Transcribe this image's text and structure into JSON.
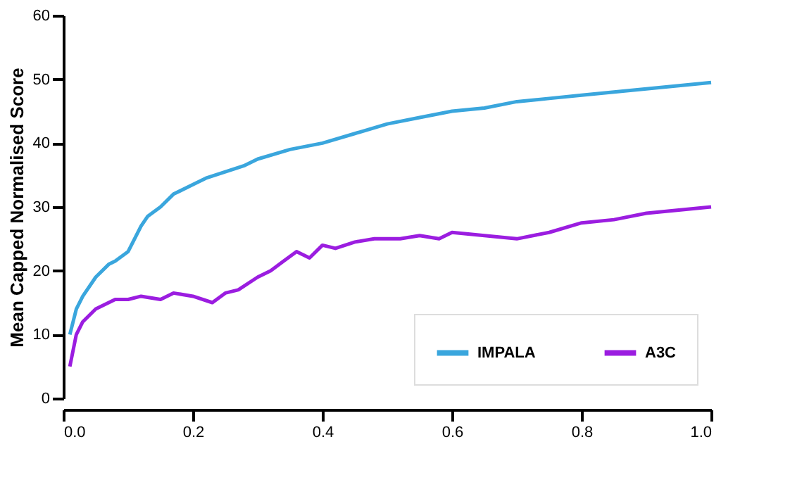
{
  "chart_data": {
    "type": "line",
    "ylabel": "Mean Capped Normalised Score",
    "xlim": [
      0,
      1.0
    ],
    "xticks": [
      {
        "value": 0,
        "label": "0.0"
      },
      0.2,
      0.4,
      0.6,
      0.8,
      {
        "value": 1,
        "label": "1.0"
      }
    ],
    "ylim": [
      0,
      60
    ],
    "yticks": [
      0,
      10,
      20,
      30,
      40,
      50,
      60
    ],
    "grid": false,
    "legend": "bottom right",
    "marker": "none",
    "line_style": "solid",
    "series": [
      {
        "name": "IMPALA",
        "color": "#3aa6dd",
        "x": [
          0.01,
          0.02,
          0.03,
          0.05,
          0.07,
          0.08,
          0.1,
          0.12,
          0.13,
          0.15,
          0.17,
          0.2,
          0.22,
          0.25,
          0.28,
          0.3,
          0.35,
          0.4,
          0.45,
          0.5,
          0.55,
          0.6,
          0.65,
          0.7,
          0.75,
          0.8,
          0.85,
          0.9,
          0.95,
          1.0
        ],
        "values": [
          10,
          14,
          16,
          19,
          21,
          21.5,
          23,
          27,
          28.5,
          30,
          32,
          33.5,
          34.5,
          35.5,
          36.5,
          37.5,
          39,
          40,
          41.5,
          43,
          44,
          45,
          45.5,
          46.5,
          47,
          47.5,
          48,
          48.5,
          49,
          49.5
        ]
      },
      {
        "name": "A3C",
        "color": "#9b1de0",
        "x": [
          0.01,
          0.02,
          0.03,
          0.05,
          0.08,
          0.1,
          0.12,
          0.15,
          0.17,
          0.2,
          0.23,
          0.25,
          0.27,
          0.3,
          0.32,
          0.34,
          0.36,
          0.38,
          0.4,
          0.42,
          0.45,
          0.48,
          0.52,
          0.55,
          0.58,
          0.6,
          0.65,
          0.7,
          0.75,
          0.8,
          0.85,
          0.9,
          0.95,
          1.0
        ],
        "values": [
          5,
          10,
          12,
          14,
          15.5,
          15.5,
          16,
          15.5,
          16.5,
          16,
          15,
          16.5,
          17,
          19,
          20,
          21.5,
          23,
          22,
          24,
          23.5,
          24.5,
          25,
          25,
          25.5,
          25,
          26,
          25.5,
          25,
          26,
          27.5,
          28,
          29,
          29.5,
          30
        ]
      }
    ]
  }
}
